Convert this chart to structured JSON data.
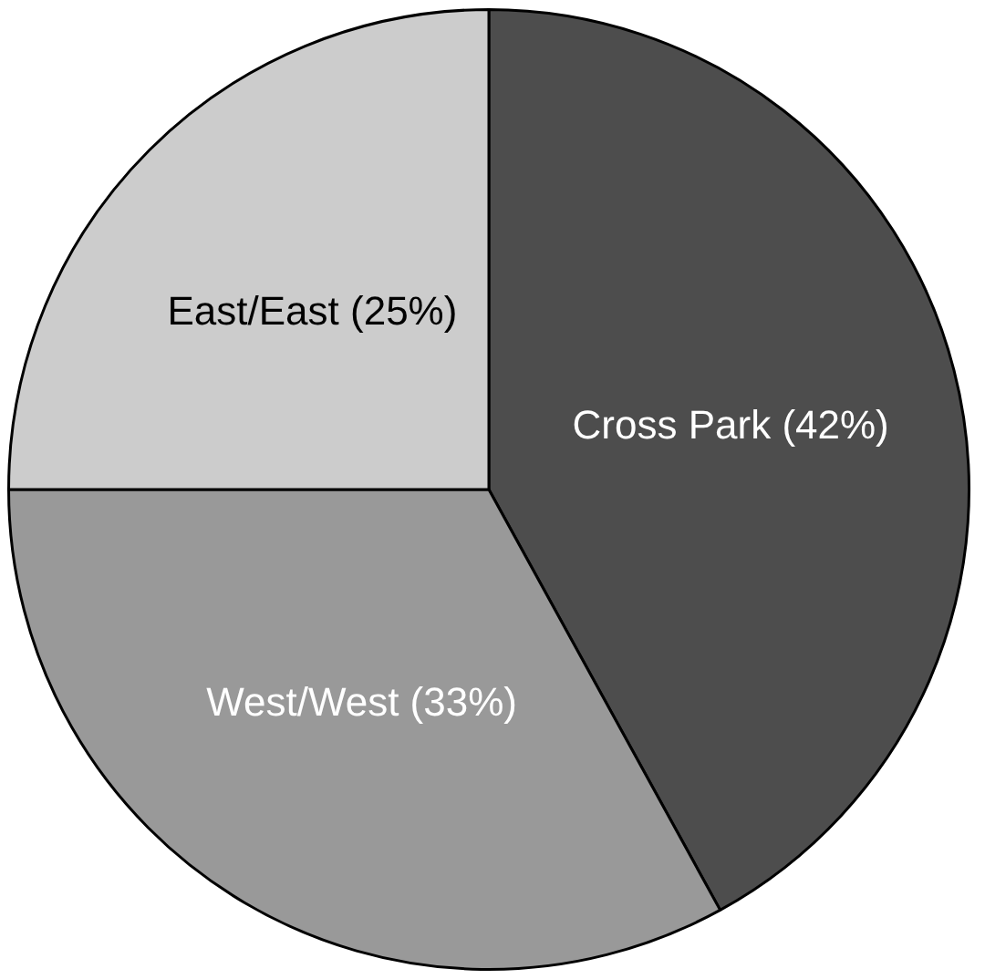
{
  "chart_data": {
    "type": "pie",
    "categories": [
      "Cross Park (42%)",
      "West/West (33%)",
      "East/East (25%)"
    ],
    "values": [
      42,
      33,
      25
    ],
    "colors": [
      "#4d4d4d",
      "#999999",
      "#cccccc"
    ],
    "legend": false
  }
}
